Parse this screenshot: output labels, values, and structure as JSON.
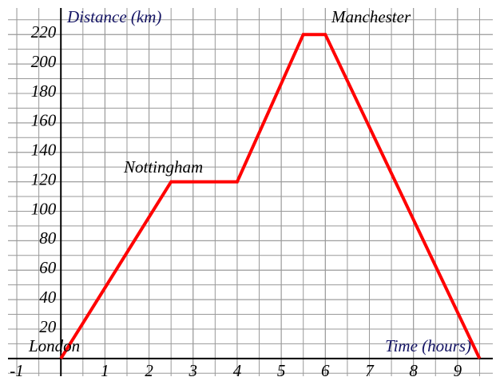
{
  "chart_data": {
    "type": "line",
    "y_label": "Distance (km)",
    "x_label": "Time (hours)",
    "annotations": [
      "London",
      "Nottingham",
      "Manchester"
    ],
    "x": [
      0,
      2.5,
      4,
      5.5,
      6,
      9.5
    ],
    "series": [
      {
        "color": "#ff0000",
        "values": [
          0,
          120,
          120,
          220,
          220,
          0
        ]
      }
    ],
    "xlim": [
      -1.2,
      9.8
    ],
    "xticks": [
      -1,
      1,
      2,
      3,
      4,
      5,
      6,
      7,
      8,
      9
    ],
    "ylim": [
      -12,
      238
    ],
    "yticks": [
      20,
      40,
      60,
      80,
      100,
      120,
      140,
      160,
      180,
      200,
      220
    ],
    "grid": true
  }
}
